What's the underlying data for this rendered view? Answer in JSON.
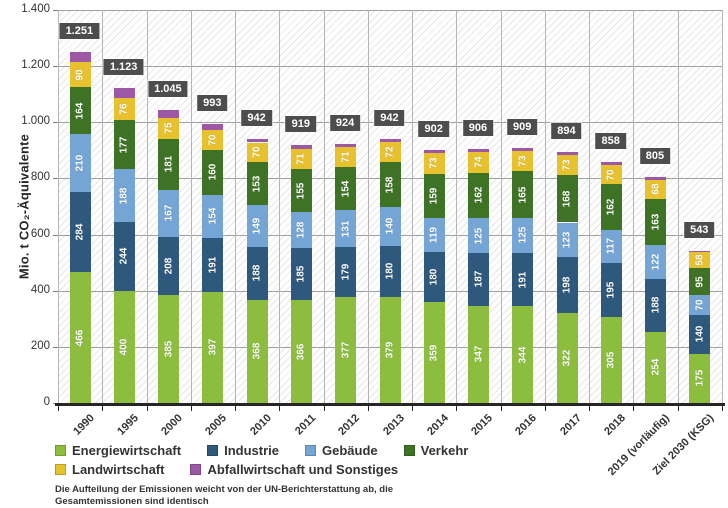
{
  "chart_data": {
    "type": "bar",
    "stacked": true,
    "title": "",
    "ylabel": "Mio. t CO₂-Äquivalente",
    "xlabel": "",
    "ylim": [
      0,
      1400
    ],
    "ytick_step": 200,
    "ytick_labels": [
      "0",
      "200",
      "400",
      "600",
      "800",
      "1.000",
      "1.200",
      "1.400"
    ],
    "grid": true,
    "legend_position": "bottom",
    "categories": [
      "1990",
      "1995",
      "2000",
      "2005",
      "2010",
      "2011",
      "2012",
      "2013",
      "2014",
      "2015",
      "2016",
      "2017",
      "2018",
      "2019 (vorläufig)",
      "Ziel 2030 (KSG)"
    ],
    "series": [
      {
        "name": "Energiewirtschaft",
        "color": "#8cbd3f",
        "labels_visible": true,
        "values": [
          466,
          400,
          385,
          397,
          368,
          366,
          377,
          379,
          359,
          347,
          344,
          322,
          305,
          254,
          175
        ]
      },
      {
        "name": "Industrie",
        "color": "#2f587d",
        "labels_visible": true,
        "values": [
          284,
          244,
          208,
          191,
          188,
          185,
          179,
          180,
          180,
          187,
          191,
          198,
          195,
          188,
          140
        ]
      },
      {
        "name": "Gebäude",
        "color": "#74a5d4",
        "labels_visible": true,
        "values": [
          210,
          188,
          167,
          154,
          149,
          128,
          131,
          140,
          119,
          125,
          125,
          123,
          117,
          122,
          70
        ]
      },
      {
        "name": "Verkehr",
        "color": "#3e7326",
        "labels_visible": true,
        "values": [
          164,
          177,
          181,
          160,
          153,
          155,
          154,
          158,
          159,
          162,
          165,
          168,
          162,
          163,
          95
        ]
      },
      {
        "name": "Landwirtschaft",
        "color": "#e8c12f",
        "labels_visible": true,
        "values": [
          90,
          76,
          75,
          70,
          70,
          71,
          71,
          72,
          73,
          74,
          73,
          73,
          70,
          68,
          58
        ]
      },
      {
        "name": "Abfallwirtschaft und Sonstiges",
        "color": "#9c58a5",
        "labels_visible": false,
        "values": [
          37,
          38,
          29,
          21,
          14,
          14,
          12,
          13,
          12,
          11,
          11,
          10,
          9,
          10,
          5
        ]
      }
    ],
    "totals": [
      "1.251",
      "1.123",
      "1.045",
      "993",
      "942",
      "919",
      "924",
      "942",
      "902",
      "906",
      "909",
      "894",
      "858",
      "805",
      "543"
    ]
  },
  "footnote": {
    "line1": "Die Aufteilung der Emissionen weicht von der UN-Berichterstattung ab, die",
    "line2": "Gesamtemissionen sind identisch"
  }
}
